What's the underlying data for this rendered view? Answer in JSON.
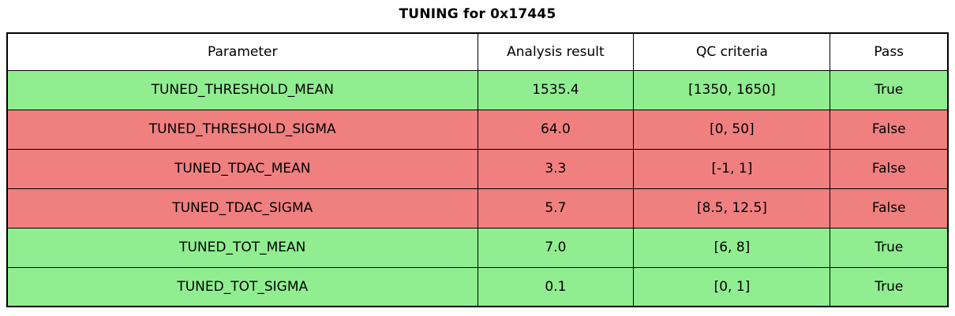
{
  "title": "TUNING for 0x17445",
  "chart_data": {
    "type": "table",
    "title": "TUNING for 0x17445",
    "columns": [
      "Parameter",
      "Analysis result",
      "QC criteria",
      "Pass"
    ],
    "rows": [
      {
        "parameter": "TUNED_THRESHOLD_MEAN",
        "analysis_result": "1535.4",
        "qc_criteria": "[1350, 1650]",
        "pass": "True"
      },
      {
        "parameter": "TUNED_THRESHOLD_SIGMA",
        "analysis_result": "64.0",
        "qc_criteria": "[0, 50]",
        "pass": "False"
      },
      {
        "parameter": "TUNED_TDAC_MEAN",
        "analysis_result": "3.3",
        "qc_criteria": "[-1, 1]",
        "pass": "False"
      },
      {
        "parameter": "TUNED_TDAC_SIGMA",
        "analysis_result": "5.7",
        "qc_criteria": "[8.5, 12.5]",
        "pass": "False"
      },
      {
        "parameter": "TUNED_TOT_MEAN",
        "analysis_result": "7.0",
        "qc_criteria": "[6, 8]",
        "pass": "True"
      },
      {
        "parameter": "TUNED_TOT_SIGMA",
        "analysis_result": "0.1",
        "qc_criteria": "[0, 1]",
        "pass": "True"
      }
    ],
    "colors": {
      "pass_row": "#90ee90",
      "fail_row": "#f08080",
      "header_bg": "#ffffff",
      "border": "#000000",
      "text": "#000000"
    },
    "layout": {
      "legend": "none",
      "grid": "table-borders"
    }
  }
}
